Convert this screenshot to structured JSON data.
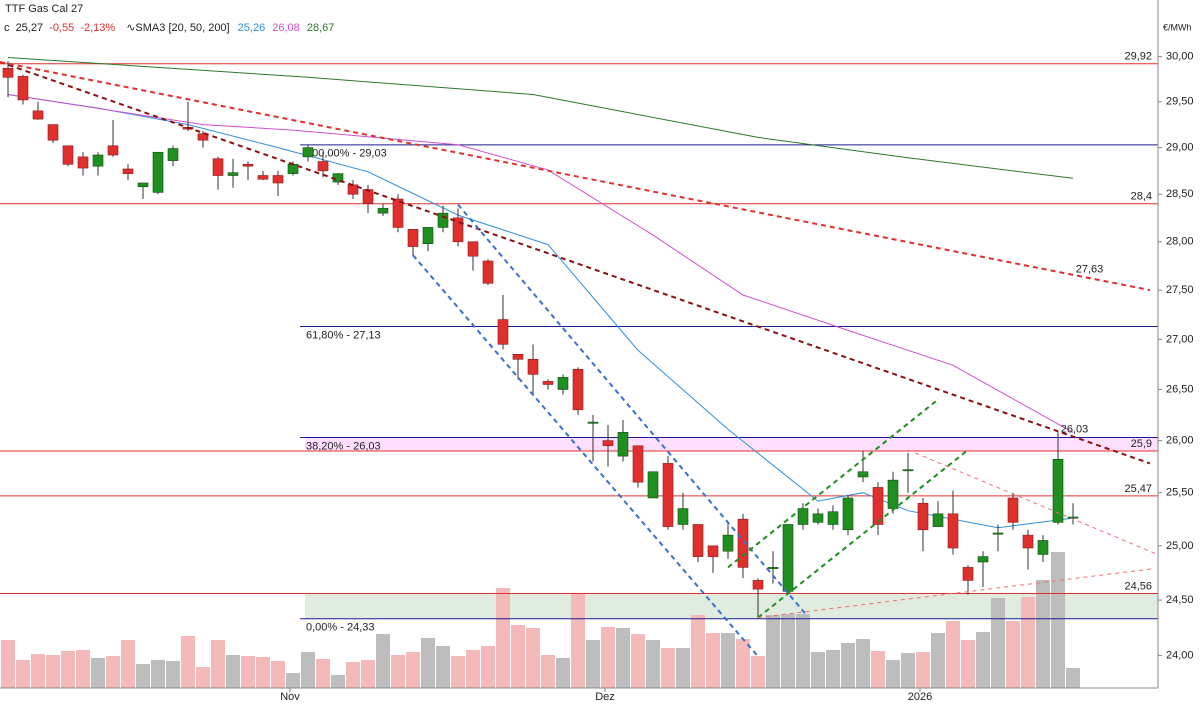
{
  "chart_data": {
    "type": "candlestick",
    "title": "TTF Gas Cal 27",
    "quote": {
      "prefix": "c",
      "close": "25,27",
      "change": "-0,55",
      "change_pct": "-2,13%"
    },
    "indicator": "∿SMA3 [20, 50, 200]",
    "unit": "€/MWh",
    "log_scale": true,
    "ylim": [
      23.71,
      30.64
    ],
    "yticks": [
      {
        "value": 24,
        "label": "24,00"
      },
      {
        "value": 24.5,
        "label": "24,50"
      },
      {
        "value": 25,
        "label": "25,00"
      },
      {
        "value": 25.5,
        "label": "25,50"
      },
      {
        "value": 26,
        "label": "26,00"
      },
      {
        "value": 26.5,
        "label": "26,50"
      },
      {
        "value": 27,
        "label": "27,00"
      },
      {
        "value": 27.5,
        "label": "27,50"
      },
      {
        "value": 28,
        "label": "28,00"
      },
      {
        "value": 28.5,
        "label": "28,50"
      },
      {
        "value": 29,
        "label": "29,00"
      },
      {
        "value": 29.5,
        "label": "29,50"
      },
      {
        "value": 30,
        "label": "30,00"
      }
    ],
    "categories": [
      null,
      null,
      null,
      null,
      null,
      null,
      null,
      null,
      null,
      null,
      null,
      null,
      null,
      null,
      null,
      null,
      null,
      null,
      null,
      "Nov",
      null,
      null,
      null,
      null,
      null,
      null,
      null,
      null,
      null,
      null,
      null,
      null,
      null,
      null,
      null,
      null,
      null,
      null,
      null,
      null,
      "Dez",
      null,
      null,
      null,
      null,
      null,
      null,
      null,
      null,
      null,
      null,
      null,
      null,
      null,
      null,
      null,
      null,
      null,
      null,
      null,
      null,
      "2026",
      null,
      null,
      null,
      null,
      null,
      null,
      null,
      null,
      null,
      null
    ],
    "up_color": "#1f8f1f",
    "down_color": "#e0302d",
    "open": [
      29.87,
      29.78,
      29.4,
      29.25,
      29.02,
      28.9,
      28.8,
      29.02,
      28.77,
      28.58,
      28.52,
      28.86,
      29.22,
      29.15,
      28.88,
      28.7,
      28.82,
      28.7,
      28.7,
      28.72,
      28.9,
      28.85,
      28.63,
      28.6,
      28.55,
      28.3,
      28.45,
      28.13,
      27.98,
      28.15,
      28.25,
      28.0,
      27.8,
      27.2,
      26.85,
      26.8,
      26.58,
      26.5,
      26.7,
      26.18,
      26.0,
      25.85,
      25.95,
      25.45,
      25.78,
      25.2,
      25.2,
      25.0,
      24.95,
      25.25,
      24.68,
      24.8,
      24.58,
      25.2,
      25.22,
      25.2,
      25.15,
      25.65,
      25.55,
      25.35,
      25.72,
      25.4,
      25.18,
      25.3,
      24.8,
      24.85,
      25.12,
      25.45,
      25.1,
      24.92,
      25.22,
      25.27
    ],
    "high": [
      29.95,
      29.8,
      29.5,
      29.25,
      29.02,
      28.95,
      28.95,
      29.3,
      28.82,
      28.62,
      28.95,
      29.02,
      29.5,
      29.18,
      28.9,
      28.88,
      28.85,
      28.75,
      28.75,
      28.85,
      29.03,
      28.95,
      28.72,
      28.65,
      28.6,
      28.4,
      28.5,
      28.13,
      28.15,
      28.38,
      28.35,
      28.0,
      27.82,
      27.45,
      26.85,
      26.95,
      26.6,
      26.65,
      26.72,
      26.25,
      26.15,
      26.2,
      25.95,
      25.7,
      25.85,
      25.5,
      25.2,
      25.0,
      25.22,
      25.3,
      24.7,
      24.95,
      25.2,
      25.4,
      25.35,
      25.38,
      25.48,
      25.9,
      25.6,
      25.7,
      25.88,
      25.45,
      25.42,
      25.52,
      24.82,
      24.95,
      25.2,
      25.5,
      25.15,
      25.1,
      26.08,
      25.4
    ],
    "low": [
      29.55,
      29.47,
      29.3,
      29.05,
      28.8,
      28.7,
      28.7,
      28.9,
      28.65,
      28.45,
      28.5,
      28.8,
      29.18,
      29.0,
      28.55,
      28.57,
      28.65,
      28.65,
      28.48,
      28.7,
      28.85,
      28.68,
      28.6,
      28.45,
      28.3,
      28.27,
      28.1,
      27.85,
      27.9,
      28.1,
      27.95,
      27.7,
      27.55,
      26.9,
      26.6,
      26.45,
      26.5,
      26.45,
      26.25,
      25.8,
      25.75,
      25.8,
      25.55,
      25.45,
      25.15,
      25.15,
      24.85,
      24.75,
      24.88,
      24.7,
      24.33,
      24.65,
      24.55,
      25.15,
      25.2,
      25.15,
      25.1,
      25.6,
      25.1,
      25.3,
      25.5,
      24.95,
      25.18,
      24.92,
      24.55,
      24.62,
      24.95,
      25.15,
      24.78,
      24.85,
      25.2,
      25.2
    ],
    "close": [
      29.77,
      29.52,
      29.31,
      29.08,
      28.82,
      28.78,
      28.92,
      28.92,
      28.72,
      28.62,
      28.95,
      28.99,
      29.2,
      29.08,
      28.7,
      28.73,
      28.8,
      28.66,
      28.62,
      28.82,
      29.0,
      28.75,
      28.72,
      28.5,
      28.4,
      28.35,
      28.15,
      27.95,
      28.15,
      28.3,
      28.0,
      27.85,
      27.57,
      26.95,
      26.8,
      26.65,
      26.55,
      26.62,
      26.3,
      26.18,
      25.95,
      26.08,
      25.6,
      25.7,
      25.18,
      25.35,
      24.9,
      24.9,
      25.1,
      24.8,
      24.6,
      24.8,
      25.2,
      25.35,
      25.3,
      25.32,
      25.45,
      25.7,
      25.2,
      25.62,
      25.72,
      25.15,
      25.3,
      24.98,
      24.68,
      24.9,
      25.12,
      25.22,
      24.98,
      25.05,
      25.82,
      25.27
    ],
    "volume": [
      48,
      28,
      34,
      33,
      37,
      38,
      30,
      32,
      48,
      24,
      28,
      27,
      52,
      21,
      48,
      33,
      32,
      31,
      27,
      15,
      36,
      29,
      13,
      26,
      28,
      54,
      33,
      36,
      50,
      42,
      32,
      38,
      42,
      100,
      63,
      60,
      33,
      30,
      95,
      48,
      61,
      60,
      54,
      48,
      40,
      40,
      73,
      55,
      55,
      49,
      32,
      73,
      74,
      74,
      36,
      38,
      45,
      49,
      37,
      28,
      35,
      36,
      55,
      67,
      48,
      56,
      90,
      67,
      91,
      108,
      136,
      20
    ],
    "volume_up_color": "#bdbdbd",
    "volume_down_color": "#f4baba",
    "moving_averages": [
      {
        "color": "#2f8fdf",
        "label": "25,26",
        "x": [
          0,
          6,
          12,
          18,
          24,
          30,
          36,
          42,
          48,
          54,
          57,
          60,
          66,
          71
        ],
        "values": [
          29.58,
          29.43,
          29.25,
          29.0,
          28.74,
          28.28,
          27.97,
          26.89,
          26.11,
          25.42,
          25.5,
          25.33,
          25.17,
          25.26
        ]
      },
      {
        "color": "#d050d0",
        "label": "26,08",
        "x": [
          0,
          13,
          19,
          30,
          36,
          43,
          49,
          56,
          63,
          71
        ],
        "values": [
          29.58,
          29.25,
          29.19,
          29.03,
          28.76,
          28.07,
          27.45,
          27.09,
          26.74,
          26.08
        ]
      },
      {
        "color": "#2a7a2a",
        "label": "28,67",
        "x": [
          0,
          20,
          35,
          50,
          60,
          71
        ],
        "values": [
          29.99,
          29.77,
          29.58,
          29.11,
          28.89,
          28.67
        ]
      }
    ],
    "levels": [
      {
        "value": 29.92,
        "label": "29,92",
        "color": "#e0302d"
      },
      {
        "value": 28.4,
        "label": "28,4",
        "color": "#e0302d"
      },
      {
        "value": 25.9,
        "label": "25,9",
        "color": "#e0302d"
      },
      {
        "value": 25.47,
        "label": "25,47",
        "color": "#e0302d"
      },
      {
        "value": 24.56,
        "label": "24,56",
        "color": "#e0302d"
      }
    ],
    "fibonacci": {
      "color": "#1c1c8c",
      "levels": [
        {
          "value": 29.03,
          "label": "100,00% - 29,03"
        },
        {
          "value": 27.13,
          "label": "61,80% - 27,13"
        },
        {
          "value": 26.03,
          "label": "38,20% - 26,03"
        },
        {
          "value": 24.33,
          "label": "0,00% - 24,33"
        }
      ]
    },
    "bands": [
      {
        "low": 25.9,
        "high": 26.03,
        "color": "rgba(255,80,255,0.18)"
      },
      {
        "low": 24.33,
        "high": 24.56,
        "color": "rgba(110,170,110,0.22)"
      }
    ],
    "trendlines": [
      {
        "color": "#8b1010",
        "x": [
          -0.53,
          76.13
        ],
        "values": [
          29.94,
          25.78
        ]
      },
      {
        "color": "#e0302d",
        "x": [
          -0.53,
          76.13
        ],
        "values": [
          29.94,
          27.5
        ]
      },
      {
        "color": "#3a6fd0",
        "x": [
          27,
          50
        ],
        "values": [
          27.86,
          23.99
        ]
      },
      {
        "color": "#3a6fd0",
        "x": [
          30,
          53.13
        ],
        "values": [
          28.39,
          24.38
        ]
      },
      {
        "color": "#1f8f1f",
        "x": [
          48,
          62
        ],
        "values": [
          24.8,
          26.4
        ]
      },
      {
        "color": "#1f8f1f",
        "x": [
          50,
          64
        ],
        "values": [
          24.34,
          25.91
        ]
      },
      {
        "color": "#f07070",
        "x": [
          60,
          76.47
        ],
        "values": [
          25.91,
          24.93
        ]
      },
      {
        "color": "#f07070",
        "x": [
          50,
          76.47
        ],
        "values": [
          24.34,
          24.79
        ]
      }
    ],
    "annotations": [
      {
        "text": "27,63",
        "x": 72.1,
        "value": 27.63,
        "color": "#e0302d"
      },
      {
        "text": "26,03",
        "x": 71.1,
        "value": 26.03,
        "color": "#8b1010"
      }
    ]
  }
}
